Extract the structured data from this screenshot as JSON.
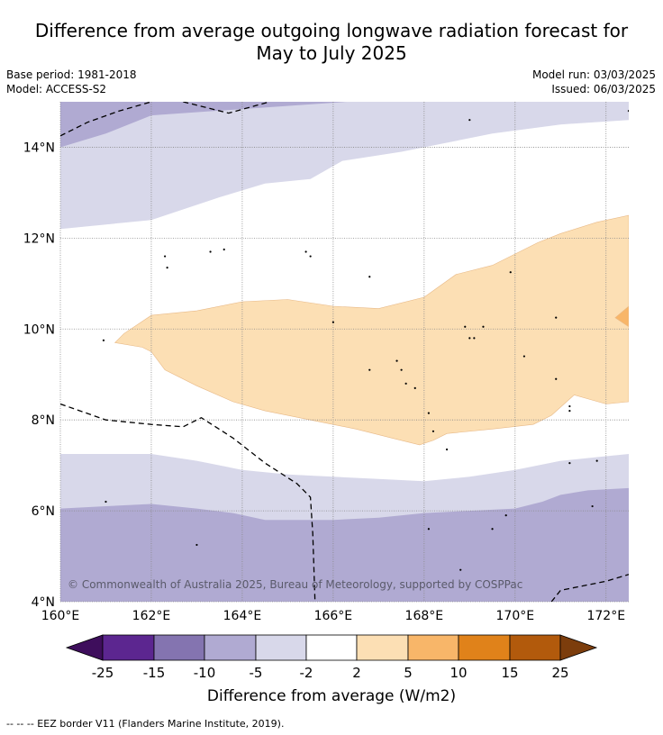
{
  "title_line1": "Difference from average outgoing longwave radiation forecast for",
  "title_line2": "May to July 2025",
  "base_period": "Base period: 1981-2018",
  "model": "Model: ACCESS-S2",
  "model_run": "Model run: 03/03/2025",
  "issued": "Issued: 06/03/2025",
  "copyright": "© Commonwealth of Australia 2025, Bureau of Meteorology, supported by COSPPac",
  "colorbar_label": "Difference from average (W/m2)",
  "footer": "--  --  -- EEZ border V11 (Flanders Marine Institute, 2019).",
  "map": {
    "lon_range": [
      160,
      172.5
    ],
    "lat_range": [
      4,
      15
    ],
    "lon_ticks": [
      {
        "value": 160,
        "label": "160°E"
      },
      {
        "value": 162,
        "label": "162°E"
      },
      {
        "value": 164,
        "label": "164°E"
      },
      {
        "value": 166,
        "label": "166°E"
      },
      {
        "value": 168,
        "label": "168°E"
      },
      {
        "value": 170,
        "label": "170°E"
      },
      {
        "value": 172,
        "label": "172°E"
      }
    ],
    "lat_ticks": [
      {
        "value": 4,
        "label": "4°N"
      },
      {
        "value": 6,
        "label": "6°N"
      },
      {
        "value": 8,
        "label": "8°N"
      },
      {
        "value": 10,
        "label": "10°N"
      },
      {
        "value": 12,
        "label": "12°N"
      },
      {
        "value": 14,
        "label": "14°N"
      }
    ],
    "regions": [
      {
        "name": "light-purple-north",
        "color": "#d8d8ea",
        "coords": [
          [
            160,
            15
          ],
          [
            172.5,
            15
          ],
          [
            172.5,
            14.6
          ],
          [
            171,
            14.5
          ],
          [
            169.5,
            14.3
          ],
          [
            167.5,
            13.9
          ],
          [
            166.2,
            13.7
          ],
          [
            165.5,
            13.3
          ],
          [
            164.5,
            13.2
          ],
          [
            163.5,
            12.9
          ],
          [
            162,
            12.4
          ],
          [
            160,
            12.2
          ]
        ]
      },
      {
        "name": "mid-purple-north",
        "color": "#b0aad2",
        "coords": [
          [
            160,
            15
          ],
          [
            166.3,
            15
          ],
          [
            162,
            14.7
          ],
          [
            161,
            14.3
          ],
          [
            160,
            14
          ]
        ]
      },
      {
        "name": "orange-band",
        "color": "#fcdfb4",
        "coords": [
          [
            161.2,
            9.7
          ],
          [
            161.4,
            9.9
          ],
          [
            162,
            10.3
          ],
          [
            163,
            10.4
          ],
          [
            164,
            10.6
          ],
          [
            165,
            10.65
          ],
          [
            166,
            10.5
          ],
          [
            167,
            10.45
          ],
          [
            168,
            10.7
          ],
          [
            168.7,
            11.2
          ],
          [
            169.5,
            11.4
          ],
          [
            170.5,
            11.9
          ],
          [
            171,
            12.1
          ],
          [
            171.8,
            12.35
          ],
          [
            172.5,
            12.5
          ],
          [
            172.5,
            8.4
          ],
          [
            172,
            8.35
          ],
          [
            171.3,
            8.55
          ],
          [
            170.8,
            8.1
          ],
          [
            170.4,
            7.9
          ],
          [
            169.5,
            7.8
          ],
          [
            168.5,
            7.7
          ],
          [
            168.2,
            7.55
          ],
          [
            167.9,
            7.45
          ],
          [
            167.3,
            7.6
          ],
          [
            166.5,
            7.8
          ],
          [
            165.5,
            8
          ],
          [
            164.5,
            8.2
          ],
          [
            163.8,
            8.4
          ],
          [
            163,
            8.75
          ],
          [
            162.3,
            9.1
          ],
          [
            162,
            9.5
          ],
          [
            161.8,
            9.6
          ]
        ]
      },
      {
        "name": "dark-orange-patch",
        "color": "#f8b669",
        "coords": [
          [
            172.5,
            10.5
          ],
          [
            172.2,
            10.25
          ],
          [
            172.5,
            10.05
          ]
        ]
      },
      {
        "name": "light-purple-south",
        "color": "#d8d8ea",
        "coords": [
          [
            160,
            7.25
          ],
          [
            162,
            7.25
          ],
          [
            163,
            7.1
          ],
          [
            164,
            6.9
          ],
          [
            165,
            6.8
          ],
          [
            166,
            6.75
          ],
          [
            167,
            6.7
          ],
          [
            168,
            6.65
          ],
          [
            169,
            6.75
          ],
          [
            170,
            6.9
          ],
          [
            171,
            7.1
          ],
          [
            172,
            7.2
          ],
          [
            172.5,
            7.25
          ],
          [
            172.5,
            4
          ],
          [
            160,
            4
          ]
        ]
      },
      {
        "name": "mid-purple-south",
        "color": "#b0aad2",
        "coords": [
          [
            160,
            6.05
          ],
          [
            161,
            6.1
          ],
          [
            162,
            6.15
          ],
          [
            163,
            6.05
          ],
          [
            163.8,
            5.95
          ],
          [
            164.5,
            5.8
          ],
          [
            165,
            5.8
          ],
          [
            166,
            5.8
          ],
          [
            167,
            5.85
          ],
          [
            168,
            5.95
          ],
          [
            169,
            6
          ],
          [
            170,
            6.05
          ],
          [
            170.6,
            6.2
          ],
          [
            171,
            6.35
          ],
          [
            171.6,
            6.45
          ],
          [
            172.5,
            6.5
          ],
          [
            172.5,
            4
          ],
          [
            160,
            4
          ]
        ]
      }
    ],
    "eez_lines": [
      {
        "name": "eez-north",
        "coords": [
          [
            160,
            14.25
          ],
          [
            160.6,
            14.55
          ],
          [
            161.3,
            14.8
          ],
          [
            162,
            15
          ]
        ]
      },
      {
        "name": "eez-north-2",
        "coords": [
          [
            162.7,
            15
          ],
          [
            163.7,
            14.75
          ],
          [
            164.6,
            15
          ]
        ]
      },
      {
        "name": "eez-central",
        "coords": [
          [
            160,
            8.35
          ],
          [
            161,
            8
          ],
          [
            162,
            7.9
          ],
          [
            162.7,
            7.85
          ],
          [
            163.1,
            8.05
          ],
          [
            163.8,
            7.6
          ],
          [
            164.5,
            7.05
          ],
          [
            165.2,
            6.6
          ],
          [
            165.5,
            6.3
          ],
          [
            165.55,
            5.5
          ],
          [
            165.6,
            4
          ]
        ]
      },
      {
        "name": "eez-south-east",
        "coords": [
          [
            170.8,
            4
          ],
          [
            171,
            4.25
          ],
          [
            172,
            4.45
          ],
          [
            172.5,
            4.6
          ]
        ]
      }
    ],
    "islands": [
      [
        160.95,
        9.75
      ],
      [
        162.3,
        11.6
      ],
      [
        162.35,
        11.35
      ],
      [
        163.3,
        11.7
      ],
      [
        163.6,
        11.75
      ],
      [
        165.4,
        11.7
      ],
      [
        165.5,
        11.6
      ],
      [
        166,
        10.15
      ],
      [
        166.8,
        11.15
      ],
      [
        166.8,
        9.1
      ],
      [
        167.4,
        9.3
      ],
      [
        167.5,
        9.1
      ],
      [
        167.6,
        8.8
      ],
      [
        167.8,
        8.7
      ],
      [
        168.1,
        8.15
      ],
      [
        168.2,
        7.75
      ],
      [
        168.5,
        7.35
      ],
      [
        168.9,
        10.05
      ],
      [
        169,
        9.8
      ],
      [
        169.1,
        9.8
      ],
      [
        169.3,
        10.05
      ],
      [
        169.9,
        11.25
      ],
      [
        170.2,
        9.4
      ],
      [
        170.9,
        10.25
      ],
      [
        170.9,
        8.9
      ],
      [
        171.2,
        8.2
      ],
      [
        171.2,
        8.3
      ],
      [
        171.2,
        7.05
      ],
      [
        171.8,
        7.1
      ],
      [
        171.7,
        6.1
      ],
      [
        169.5,
        5.6
      ],
      [
        169.8,
        5.9
      ],
      [
        168.1,
        5.6
      ],
      [
        168.8,
        4.7
      ],
      [
        163,
        5.25
      ],
      [
        161,
        6.2
      ],
      [
        169,
        14.6
      ],
      [
        172.5,
        14.8
      ]
    ]
  }
}
